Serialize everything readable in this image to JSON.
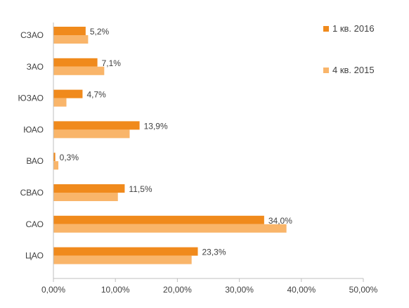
{
  "chart_data": {
    "type": "bar",
    "orientation": "horizontal",
    "categories": [
      "СЗАО",
      "ЗАО",
      "ЮЗАО",
      "ЮАО",
      "ВАО",
      "СВАО",
      "САО",
      "ЦАО"
    ],
    "series": [
      {
        "name": "1 кв. 2016",
        "color": "#F08A1C",
        "values": [
          5.2,
          7.1,
          4.7,
          13.9,
          0.3,
          11.5,
          34.0,
          23.3
        ],
        "data_labels": [
          "5,2%",
          "7,1%",
          "4,7%",
          "13,9%",
          "0,3%",
          "11,5%",
          "34,0%",
          "23,3%"
        ]
      },
      {
        "name": "4 кв. 2015",
        "color": "#F9B56A",
        "values": [
          5.6,
          8.2,
          2.1,
          12.3,
          0.8,
          10.4,
          37.6,
          22.3
        ]
      }
    ],
    "xlim": [
      0,
      50
    ],
    "xticks": [
      0,
      10,
      20,
      30,
      40,
      50
    ],
    "xtick_labels": [
      "0,00%",
      "10,00%",
      "20,00%",
      "30,00%",
      "40,00%",
      "50,00%"
    ],
    "legend_position": "top-right",
    "grid": false
  }
}
